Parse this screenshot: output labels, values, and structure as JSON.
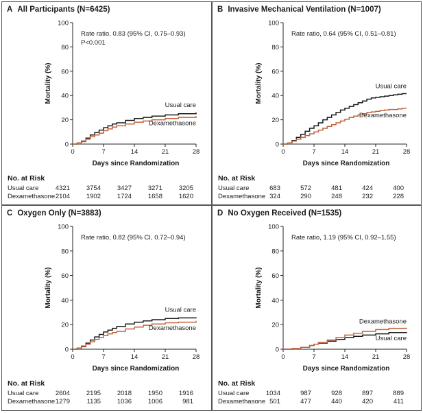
{
  "xlabel": "Days since Randomization",
  "ylabel": "Mortality (%)",
  "risk_title": "No. at Risk",
  "colors": {
    "usual": "#1a1a1a",
    "dexa": "#c0633a"
  },
  "chart_data": [
    {
      "type": "line",
      "letter": "A",
      "title": "All Participants (N=6425)",
      "annotation": [
        "Rate ratio, 0.83 (95% CI, 0.75–0.93)",
        "P<0.001"
      ],
      "xlabel": "Days since Randomization",
      "ylabel": "Mortality (%)",
      "x_ticks": [
        0,
        7,
        14,
        21,
        28
      ],
      "y_ticks": [
        0,
        20,
        40,
        60,
        80,
        100
      ],
      "xlim": [
        0,
        28
      ],
      "ylim": [
        0,
        100
      ],
      "series": [
        {
          "name": "Usual care",
          "label": "Usual care",
          "x": [
            0,
            1,
            2,
            3,
            4,
            5,
            6,
            7,
            8,
            9,
            10,
            12,
            14,
            16,
            18,
            21,
            24,
            28
          ],
          "y": [
            0,
            1,
            2.5,
            5,
            7.5,
            9.5,
            11.5,
            13.5,
            15,
            16.5,
            17.5,
            19.5,
            21,
            22,
            23,
            24,
            25,
            26
          ]
        },
        {
          "name": "Dexamethasone",
          "label": "Dexamethasone",
          "x": [
            0,
            1,
            2,
            3,
            4,
            5,
            6,
            7,
            8,
            9,
            10,
            12,
            14,
            16,
            18,
            21,
            24,
            28
          ],
          "y": [
            0,
            1,
            2,
            4,
            6,
            7.5,
            9,
            11,
            12.5,
            14,
            15,
            16.5,
            18,
            19,
            20,
            21,
            22,
            23
          ]
        }
      ],
      "risk": {
        "days": [
          0,
          7,
          14,
          21,
          28
        ],
        "rows": [
          {
            "label": "Usual care",
            "values": [
              "4321",
              "3754",
              "3427",
              "3271",
              "3205"
            ]
          },
          {
            "label": "Dexamethasone",
            "values": [
              "2104",
              "1902",
              "1724",
              "1658",
              "1620"
            ]
          }
        ]
      }
    },
    {
      "type": "line",
      "letter": "B",
      "title": "Invasive Mechanical Ventilation (N=1007)",
      "annotation": [
        "Rate ratio, 0.64 (95% CI, 0.51–0.81)"
      ],
      "xlabel": "Days since Randomization",
      "ylabel": "Mortality (%)",
      "x_ticks": [
        0,
        7,
        14,
        21,
        28
      ],
      "y_ticks": [
        0,
        20,
        40,
        60,
        80,
        100
      ],
      "xlim": [
        0,
        28
      ],
      "ylim": [
        0,
        100
      ],
      "series": [
        {
          "name": "Usual care",
          "label": "Usual care",
          "x": [
            0,
            1,
            2,
            3,
            4,
            5,
            6,
            7,
            8,
            9,
            10,
            11,
            12,
            13,
            14,
            15,
            16,
            17,
            18,
            19,
            20,
            21,
            22,
            23,
            24,
            25,
            26,
            27,
            28
          ],
          "y": [
            0,
            1,
            3,
            5.5,
            8,
            10.5,
            13,
            15,
            17.5,
            20,
            22,
            24,
            26,
            28,
            29.5,
            31,
            32.5,
            34,
            35.5,
            37,
            38,
            38.5,
            39,
            39.5,
            40,
            40.5,
            41,
            41.5,
            41.5
          ]
        },
        {
          "name": "Dexamethasone",
          "label": "Dexamethasone",
          "x": [
            0,
            1,
            2,
            3,
            4,
            5,
            6,
            7,
            8,
            9,
            10,
            11,
            12,
            13,
            14,
            15,
            16,
            17,
            18,
            19,
            20,
            21,
            22,
            23,
            24,
            25,
            26,
            27,
            28
          ],
          "y": [
            0,
            1,
            2.5,
            4,
            5.5,
            7,
            8.5,
            10,
            11.5,
            13,
            14.5,
            16,
            17.5,
            19,
            20.5,
            22,
            23,
            24,
            25,
            26,
            26.5,
            27,
            27.5,
            28,
            28.5,
            28.5,
            29,
            29.5,
            29.5
          ]
        }
      ],
      "risk": {
        "days": [
          0,
          7,
          14,
          21,
          28
        ],
        "rows": [
          {
            "label": "Usual care",
            "values": [
              "683",
              "572",
              "481",
              "424",
              "400"
            ]
          },
          {
            "label": "Dexamethasone",
            "values": [
              "324",
              "290",
              "248",
              "232",
              "228"
            ]
          }
        ]
      }
    },
    {
      "type": "line",
      "letter": "C",
      "title": "Oxygen Only (N=3883)",
      "annotation": [
        "Rate ratio, 0.82 (95% CI, 0.72–0.94)"
      ],
      "xlabel": "Days since Randomization",
      "ylabel": "Mortality (%)",
      "x_ticks": [
        0,
        7,
        14,
        21,
        28
      ],
      "y_ticks": [
        0,
        20,
        40,
        60,
        80,
        100
      ],
      "xlim": [
        0,
        28
      ],
      "ylim": [
        0,
        100
      ],
      "series": [
        {
          "name": "Usual care",
          "label": "Usual care",
          "x": [
            0,
            1,
            2,
            3,
            4,
            5,
            6,
            7,
            8,
            9,
            10,
            12,
            14,
            16,
            18,
            21,
            24,
            28
          ],
          "y": [
            0,
            1,
            2.5,
            5,
            7.5,
            10,
            12,
            14,
            15.5,
            17,
            18.5,
            20.5,
            22,
            23,
            24,
            25,
            25.5,
            26
          ]
        },
        {
          "name": "Dexamethasone",
          "label": "Dexamethasone",
          "x": [
            0,
            1,
            2,
            3,
            4,
            5,
            6,
            7,
            8,
            9,
            10,
            12,
            14,
            16,
            18,
            21,
            24,
            28
          ],
          "y": [
            0,
            1,
            2,
            4,
            6,
            8,
            9.5,
            11,
            12.5,
            13.5,
            14.5,
            16.5,
            18,
            19.5,
            20.5,
            21.5,
            22,
            23
          ]
        }
      ],
      "risk": {
        "days": [
          0,
          7,
          14,
          21,
          28
        ],
        "rows": [
          {
            "label": "Usual care",
            "values": [
              "2604",
              "2195",
              "2018",
              "1950",
              "1916"
            ]
          },
          {
            "label": "Dexamethasone",
            "values": [
              "1279",
              "1135",
              "1036",
              "1006",
              "981"
            ]
          }
        ]
      }
    },
    {
      "type": "line",
      "letter": "D",
      "title": "No Oxygen Received (N=1535)",
      "annotation": [
        "Rate ratio, 1.19 (95% CI, 0.92–1.55)"
      ],
      "xlabel": "Days since Randomization",
      "ylabel": "Mortality (%)",
      "x_ticks": [
        0,
        7,
        14,
        21,
        28
      ],
      "y_ticks": [
        0,
        20,
        40,
        60,
        80,
        100
      ],
      "xlim": [
        0,
        28
      ],
      "ylim": [
        0,
        100
      ],
      "series": [
        {
          "name": "Usual care",
          "label": "Usual care",
          "x": [
            0,
            2,
            4,
            6,
            7,
            8,
            10,
            12,
            14,
            16,
            18,
            21,
            24,
            28
          ],
          "y": [
            0,
            0.5,
            1.5,
            3,
            4,
            5,
            6.5,
            8,
            9.5,
            10.5,
            11.5,
            12.5,
            13.5,
            14
          ]
        },
        {
          "name": "Dexamethasone",
          "label": "Dexamethasone",
          "x": [
            0,
            2,
            4,
            6,
            7,
            8,
            10,
            12,
            14,
            16,
            18,
            21,
            24,
            28
          ],
          "y": [
            0,
            0.5,
            1.5,
            3,
            4,
            5.5,
            7.5,
            9.5,
            11.5,
            13,
            14.5,
            16,
            17,
            17.5
          ]
        }
      ],
      "risk": {
        "days": [
          0,
          7,
          14,
          21,
          28
        ],
        "rows": [
          {
            "label": "Usual care",
            "values": [
              "1034",
              "987",
              "928",
              "897",
              "889"
            ]
          },
          {
            "label": "Dexamethasone",
            "values": [
              "501",
              "477",
              "440",
              "420",
              "411"
            ]
          }
        ]
      }
    }
  ]
}
